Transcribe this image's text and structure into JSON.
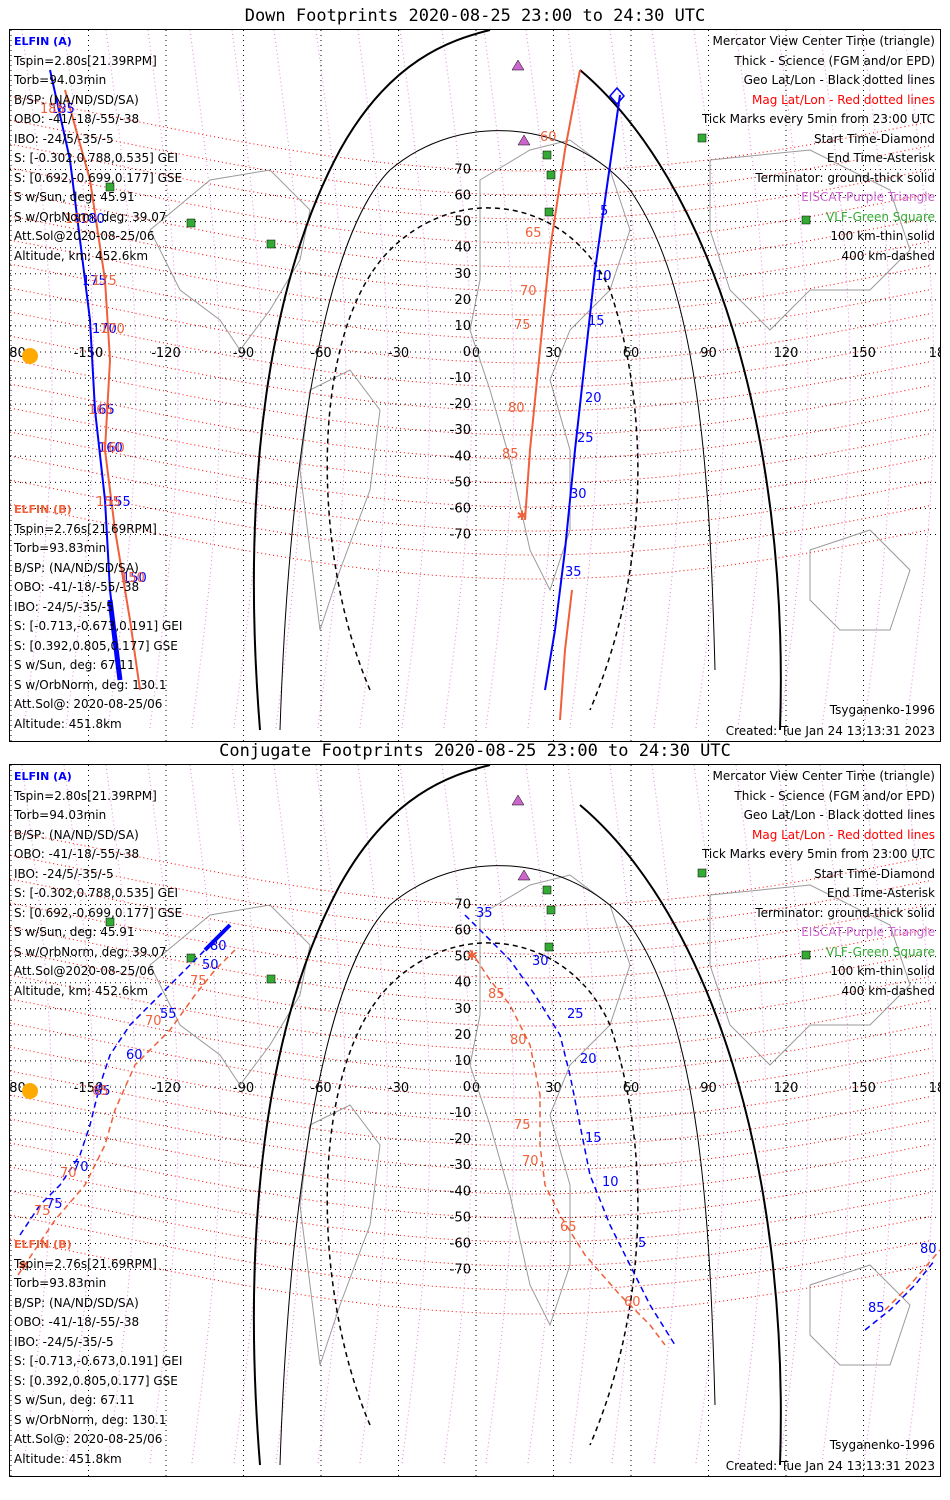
{
  "panels": [
    {
      "title": "Down Footprints 2020-08-25 23:00 to 24:30 UTC",
      "elfin_a": {
        "name": "ELFIN (A)",
        "lines": [
          "Tspin=2.80s[21.39RPM]",
          "Torb=94.03min",
          "B/SP: (NA/ND/SD/SA)",
          "OBO: -41/-18/-55/-38",
          "IBO: -24/5/-35/-5",
          "S: [-0.302,0.788,0.535] GEI",
          "S: [0.692,-0.699,0.177] GSE",
          "S w/Sun, deg: 45.91",
          "S w/OrbNorm, deg: 39.07",
          "Att.Sol@2020-08-25/06",
          "Altitude, km: 452.6km"
        ]
      },
      "elfin_b": {
        "name": "ELFIN (B)",
        "lines": [
          "Tspin=2.76s[21.69RPM]",
          "Torb=93.83min",
          "B/SP: (NA/ND/SD/SA)",
          "OBO: -41/-18/-55/-38",
          "IBO: -24/5/-35/-5",
          "S: [-0.713,-0.673,0.191] GEI",
          "S: [0.392,0.805,0.177] GSE",
          "S w/Sun, deg: 67.11",
          "S w/OrbNorm, deg: 130.1",
          "Att.Sol@: 2020-08-25/06",
          "Altitude: 451.8km"
        ]
      },
      "legend": [
        "Mercator View Center Time (triangle)",
        "Thick - Science (FGM and/or EPD)",
        "Geo Lat/Lon - Black dotted lines",
        "Mag Lat/Lon - Red dotted lines",
        "Tick Marks every 5min from 23:00 UTC",
        "Start Time-Diamond",
        "End Time-Asterisk",
        "Terminator: ground-thick solid",
        "EISCAT-Purple Triangle",
        "VLF-Green Square",
        "100 km-thin solid",
        "400 km-dashed"
      ],
      "legend_colors": [
        "#000000",
        "#000000",
        "#000000",
        "#ff0000",
        "#000000",
        "#000000",
        "#000000",
        "#000000",
        "#cc66cc",
        "#33aa33",
        "#000000",
        "#000000"
      ],
      "model": "Tsyganenko-1996",
      "created": "Created: Tue Jan 24 13:13:31 2023",
      "track_a_labels": [
        "5",
        "10",
        "15",
        "20",
        "25",
        "30",
        "35",
        "150",
        "155",
        "160",
        "165",
        "170",
        "175",
        "180",
        "185"
      ],
      "track_b_labels": [
        "60",
        "65",
        "70",
        "75",
        "80",
        "85",
        "150",
        "155",
        "160",
        "165",
        "170",
        "175",
        "180",
        "185"
      ]
    },
    {
      "title": "Conjugate Footprints 2020-08-25 23:00 to 24:30 UTC",
      "elfin_a": {
        "name": "ELFIN (A)",
        "lines": [
          "Tspin=2.80s[21.39RPM]",
          "Torb=94.03min",
          "B/SP: (NA/ND/SD/SA)",
          "OBO: -41/-18/-55/-38",
          "IBO: -24/5/-35/-5",
          "S: [-0.302,0.788,0.535] GEI",
          "S: [0.692,-0.699,0.177] GSE",
          "S w/Sun, deg: 45.91",
          "S w/OrbNorm, deg: 39.07",
          "Att.Sol@2020-08-25/06",
          "Altitude, km: 452.6km"
        ]
      },
      "elfin_b": {
        "name": "ELFIN (B)",
        "lines": [
          "Tspin=2.76s[21.69RPM]",
          "Torb=93.83min",
          "B/SP: (NA/ND/SD/SA)",
          "OBO: -41/-18/-55/-38",
          "IBO: -24/5/-35/-5",
          "S: [-0.713,-0.673,0.191] GEI",
          "S: [0.392,0.805,0.177] GSE",
          "S w/Sun, deg: 67.11",
          "S w/OrbNorm, deg: 130.1",
          "Att.Sol@: 2020-08-25/06",
          "Altitude: 451.8km"
        ]
      },
      "legend": [
        "Mercator View Center Time (triangle)",
        "Thick - Science (FGM and/or EPD)",
        "Geo Lat/Lon - Black dotted lines",
        "Mag Lat/Lon - Red dotted lines",
        "Tick Marks every 5min from 23:00 UTC",
        "Start Time-Diamond",
        "End Time-Asterisk",
        "Terminator: ground-thick solid",
        "EISCAT-Purple Triangle",
        "VLF-Green Square",
        "100 km-thin solid",
        "400 km-dashed"
      ],
      "legend_colors": [
        "#000000",
        "#000000",
        "#000000",
        "#ff0000",
        "#000000",
        "#000000",
        "#000000",
        "#000000",
        "#cc66cc",
        "#33aa33",
        "#000000",
        "#000000"
      ],
      "model": "Tsyganenko-1996",
      "created": "Created: Tue Jan 24 13:13:31 2023",
      "track_a_labels": [
        "5",
        "10",
        "15",
        "20",
        "25",
        "30",
        "35",
        "50",
        "55",
        "60",
        "65",
        "70",
        "75",
        "80",
        "85"
      ],
      "track_b_labels": [
        "60",
        "65",
        "70",
        "75",
        "80",
        "85",
        "65",
        "70",
        "75",
        "80",
        "85"
      ]
    }
  ],
  "lon_ticks": [
    "-180",
    "-150",
    "-120",
    "-90",
    "-60",
    "-30",
    "0",
    "30",
    "60",
    "90",
    "120",
    "150",
    "180"
  ],
  "lat_ticks": [
    "70",
    "60",
    "50",
    "40",
    "30",
    "20",
    "10",
    "0",
    "-10",
    "-20",
    "-30",
    "-40",
    "-50",
    "-60",
    "-70"
  ],
  "colors": {
    "elfin_a": "#0000ff",
    "elfin_b": "#f0603a",
    "mag_grid": "#ff0000",
    "eiscat": "#cc66cc",
    "vlf": "#33aa33",
    "sun": "#ffaa00"
  }
}
